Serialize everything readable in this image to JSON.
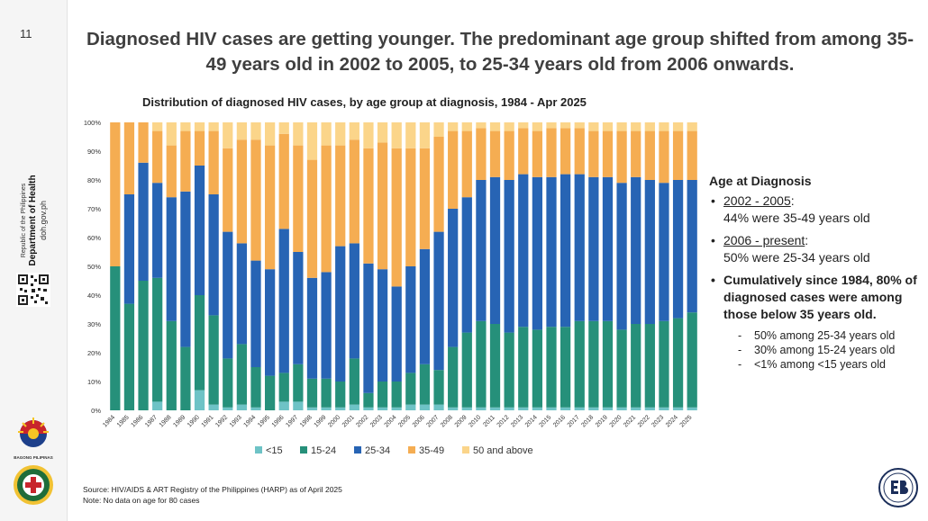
{
  "page": {
    "number": "11",
    "headline": "Diagnosed HIV cases are getting younger. The predominant age group shifted from among 35-49 years old in 2002 to 2005, to 25-34 years old from 2006 onwards."
  },
  "sidebar": {
    "org_line1": "Republic of the Philippines",
    "org_line2": "Department of Health",
    "org_line3": "doh.gov.ph",
    "bagong_label": "BAGONG PILIPINAS"
  },
  "annotation": {
    "heading": "Age at Diagnosis",
    "item1_title": "2002 - 2005",
    "item1_colon": ":",
    "item1_text": "44% were 35-49 years old",
    "item2_title": "2006 - present",
    "item2_colon": ":",
    "item2_text": "50% were 25-34 years old",
    "item3_text": "Cumulatively since 1984, 80% of diagnosed cases were among those below 35 years old.",
    "sub1": "50% among 25-34 years old",
    "sub2": "30% among 15-24 years old",
    "sub3": "<1% among <15 years old",
    "bullet": "•",
    "dash": "-"
  },
  "source": {
    "line1": "Source: HIV/AIDS & ART Registry of the Philippines (HARP) as of April 2025",
    "line2": "Note: No data on age for 80 cases"
  },
  "colors": {
    "lt15": "#6ec3c6",
    "a15_24": "#26907a",
    "a25_34": "#2764b4",
    "a35_49": "#f5ad52",
    "a50plus": "#fbd58a",
    "headline": "#3f3f3f"
  },
  "chart_data": {
    "type": "bar",
    "stacked": true,
    "title": "Distribution of diagnosed HIV cases, by age group at diagnosis, 1984 - Apr 2025",
    "categories": [
      "1984",
      "1985",
      "1986",
      "1987",
      "1988",
      "1989",
      "1990",
      "1991",
      "1992",
      "1993",
      "1994",
      "1995",
      "1996",
      "1997",
      "1998",
      "1999",
      "2000",
      "2001",
      "2002",
      "2003",
      "2004",
      "2005",
      "2006",
      "2007",
      "2008",
      "2009",
      "2010",
      "2011",
      "2012",
      "2013",
      "2014",
      "2015",
      "2016",
      "2017",
      "2018",
      "2019",
      "2020",
      "2021",
      "2022",
      "2023",
      "2024",
      "2025"
    ],
    "ylim": [
      0,
      100
    ],
    "yticks": [
      "0%",
      "10%",
      "20%",
      "30%",
      "40%",
      "50%",
      "60%",
      "70%",
      "80%",
      "90%",
      "100%"
    ],
    "legend_position": "bottom",
    "series": [
      {
        "name": "<15",
        "color": "#6ec3c6",
        "values": [
          0,
          0,
          0,
          3,
          0,
          0,
          7,
          2,
          1,
          2,
          1,
          0,
          3,
          3,
          1,
          1,
          1,
          2,
          1,
          1,
          1,
          2,
          2,
          2,
          1,
          1,
          1,
          1,
          1,
          1,
          1,
          1,
          1,
          1,
          1,
          1,
          1,
          1,
          1,
          1,
          1,
          1
        ]
      },
      {
        "name": "15-24",
        "color": "#26907a",
        "values": [
          50,
          37,
          45,
          43,
          31,
          22,
          33,
          31,
          17,
          21,
          14,
          12,
          10,
          13,
          10,
          10,
          9,
          16,
          5,
          9,
          9,
          11,
          14,
          12,
          21,
          26,
          30,
          29,
          26,
          28,
          27,
          28,
          28,
          30,
          30,
          30,
          27,
          29,
          29,
          30,
          31,
          33
        ]
      },
      {
        "name": "25-34",
        "color": "#2764b4",
        "values": [
          0,
          38,
          41,
          33,
          43,
          54,
          45,
          42,
          44,
          35,
          37,
          37,
          50,
          39,
          35,
          37,
          47,
          40,
          45,
          39,
          33,
          37,
          40,
          48,
          48,
          47,
          49,
          51,
          53,
          53,
          53,
          52,
          53,
          51,
          50,
          50,
          51,
          51,
          50,
          48,
          48,
          46
        ]
      },
      {
        "name": "35-49",
        "color": "#f5ad52",
        "values": [
          50,
          25,
          14,
          18,
          18,
          21,
          12,
          22,
          29,
          36,
          42,
          43,
          33,
          37,
          41,
          44,
          35,
          36,
          40,
          44,
          48,
          41,
          35,
          33,
          27,
          23,
          18,
          16,
          17,
          16,
          16,
          17,
          16,
          16,
          16,
          16,
          18,
          16,
          17,
          18,
          17,
          17
        ]
      },
      {
        "name": "50 and above",
        "color": "#fbd58a",
        "values": [
          0,
          0,
          0,
          3,
          8,
          3,
          3,
          3,
          9,
          6,
          6,
          8,
          4,
          8,
          13,
          8,
          8,
          6,
          9,
          7,
          9,
          9,
          9,
          5,
          3,
          3,
          2,
          3,
          3,
          2,
          3,
          2,
          2,
          2,
          3,
          3,
          3,
          3,
          3,
          3,
          3,
          3
        ]
      }
    ]
  }
}
